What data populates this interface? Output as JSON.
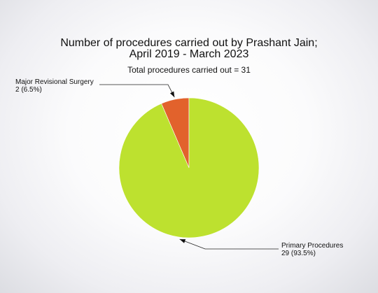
{
  "chart_data": {
    "type": "pie",
    "title_lines": [
      "Number of procedures carried out by Prashant Jain;",
      "April 2019 - March 2023"
    ],
    "subtitle": "Total procedures carried out = 31",
    "slices": [
      {
        "name": "Major Revisional Surgery",
        "value": 2,
        "value_label": "2 (6.5%)",
        "color": "#e2622c"
      },
      {
        "name": "Primary Procedures",
        "value": 29,
        "value_label": "29 (93.5%)",
        "color": "#bde12f"
      }
    ],
    "start_angle_deg": 0,
    "direction": "counterclockwise"
  }
}
